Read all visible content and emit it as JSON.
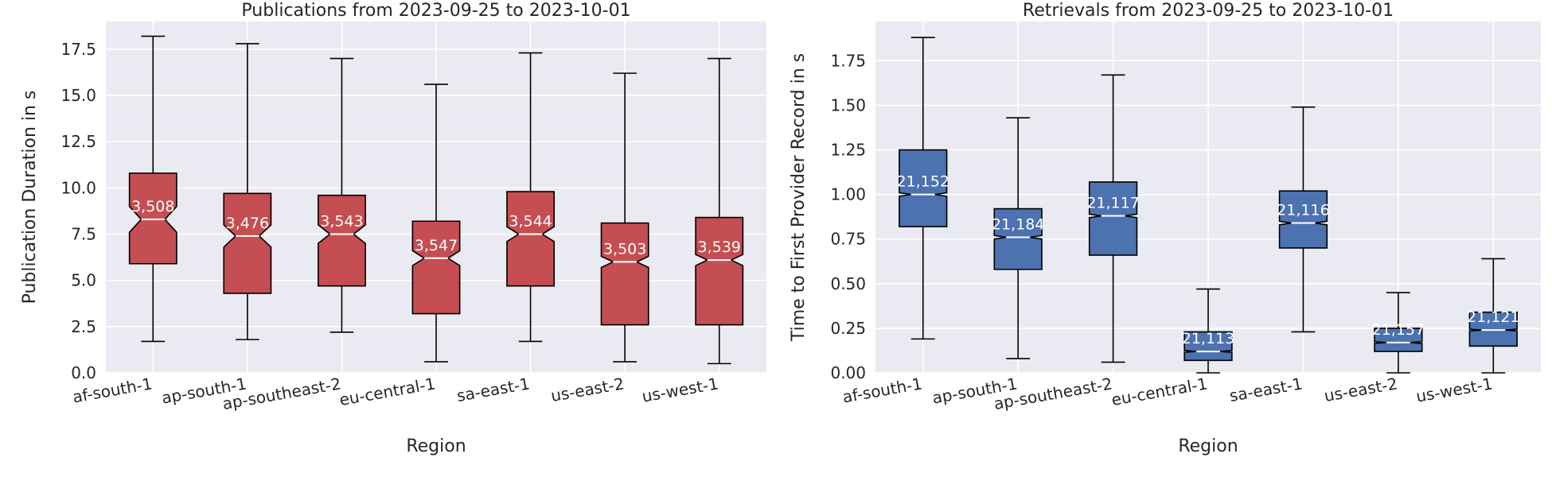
{
  "chart_data": [
    {
      "type": "box",
      "title": "Publications from 2023-09-25 to 2023-10-01",
      "xlabel": "Region",
      "ylabel": "Publication Duration in s",
      "ylim": [
        0,
        19
      ],
      "yticks": [
        0.0,
        2.5,
        5.0,
        7.5,
        10.0,
        12.5,
        15.0,
        17.5
      ],
      "ytick_labels": [
        "0.0",
        "2.5",
        "5.0",
        "7.5",
        "10.0",
        "12.5",
        "15.0",
        "17.5"
      ],
      "grid": true,
      "notched": true,
      "color": "#C44E52",
      "categories": [
        "af-south-1",
        "ap-south-1",
        "ap-southeast-2",
        "eu-central-1",
        "sa-east-1",
        "us-east-2",
        "us-west-1"
      ],
      "boxes": [
        {
          "whislo": 1.7,
          "q1": 5.9,
          "med": 8.3,
          "q3": 10.8,
          "whishi": 18.2,
          "notch_lo": 7.6,
          "notch_hi": 9.0,
          "count_label": "3,508"
        },
        {
          "whislo": 1.8,
          "q1": 4.3,
          "med": 7.4,
          "q3": 9.7,
          "whishi": 17.8,
          "notch_lo": 6.8,
          "notch_hi": 8.0,
          "count_label": "3,476"
        },
        {
          "whislo": 2.2,
          "q1": 4.7,
          "med": 7.5,
          "q3": 9.6,
          "whishi": 17.0,
          "notch_lo": 7.0,
          "notch_hi": 8.0,
          "count_label": "3,543"
        },
        {
          "whislo": 0.6,
          "q1": 3.2,
          "med": 6.2,
          "q3": 8.2,
          "whishi": 15.6,
          "notch_lo": 5.8,
          "notch_hi": 6.6,
          "count_label": "3,547"
        },
        {
          "whislo": 1.7,
          "q1": 4.7,
          "med": 7.5,
          "q3": 9.8,
          "whishi": 17.3,
          "notch_lo": 7.1,
          "notch_hi": 7.9,
          "count_label": "3,544"
        },
        {
          "whislo": 0.6,
          "q1": 2.6,
          "med": 6.0,
          "q3": 8.1,
          "whishi": 16.2,
          "notch_lo": 5.7,
          "notch_hi": 6.3,
          "count_label": "3,503"
        },
        {
          "whislo": 0.5,
          "q1": 2.6,
          "med": 6.1,
          "q3": 8.4,
          "whishi": 17.0,
          "notch_lo": 5.8,
          "notch_hi": 6.4,
          "count_label": "3,539"
        }
      ]
    },
    {
      "type": "box",
      "title": "Retrievals from 2023-09-25 to 2023-10-01",
      "xlabel": "Region",
      "ylabel": "Time to First Provider Record in s",
      "ylim": [
        0,
        1.97
      ],
      "yticks": [
        0.0,
        0.25,
        0.5,
        0.75,
        1.0,
        1.25,
        1.5,
        1.75
      ],
      "ytick_labels": [
        "0.00",
        "0.25",
        "0.50",
        "0.75",
        "1.00",
        "1.25",
        "1.50",
        "1.75"
      ],
      "grid": true,
      "notched": true,
      "color": "#4C72B0",
      "categories": [
        "af-south-1",
        "ap-south-1",
        "ap-southeast-2",
        "eu-central-1",
        "sa-east-1",
        "us-east-2",
        "us-west-1"
      ],
      "boxes": [
        {
          "whislo": 0.19,
          "q1": 0.82,
          "med": 1.0,
          "q3": 1.25,
          "whishi": 1.88,
          "notch_lo": 0.99,
          "notch_hi": 1.01,
          "count_label": "21,152"
        },
        {
          "whislo": 0.08,
          "q1": 0.58,
          "med": 0.76,
          "q3": 0.92,
          "whishi": 1.43,
          "notch_lo": 0.75,
          "notch_hi": 0.77,
          "count_label": "21,184"
        },
        {
          "whislo": 0.06,
          "q1": 0.66,
          "med": 0.88,
          "q3": 1.07,
          "whishi": 1.67,
          "notch_lo": 0.87,
          "notch_hi": 0.89,
          "count_label": "21,117"
        },
        {
          "whislo": 0.0,
          "q1": 0.07,
          "med": 0.12,
          "q3": 0.23,
          "whishi": 0.47,
          "notch_lo": 0.115,
          "notch_hi": 0.125,
          "count_label": "21,113"
        },
        {
          "whislo": 0.23,
          "q1": 0.7,
          "med": 0.84,
          "q3": 1.02,
          "whishi": 1.49,
          "notch_lo": 0.83,
          "notch_hi": 0.85,
          "count_label": "21,116"
        },
        {
          "whislo": 0.0,
          "q1": 0.12,
          "med": 0.17,
          "q3": 0.25,
          "whishi": 0.45,
          "notch_lo": 0.165,
          "notch_hi": 0.175,
          "count_label": "21,157"
        },
        {
          "whislo": 0.0,
          "q1": 0.15,
          "med": 0.24,
          "q3": 0.34,
          "whishi": 0.64,
          "notch_lo": 0.235,
          "notch_hi": 0.245,
          "count_label": "21,121"
        }
      ]
    }
  ]
}
